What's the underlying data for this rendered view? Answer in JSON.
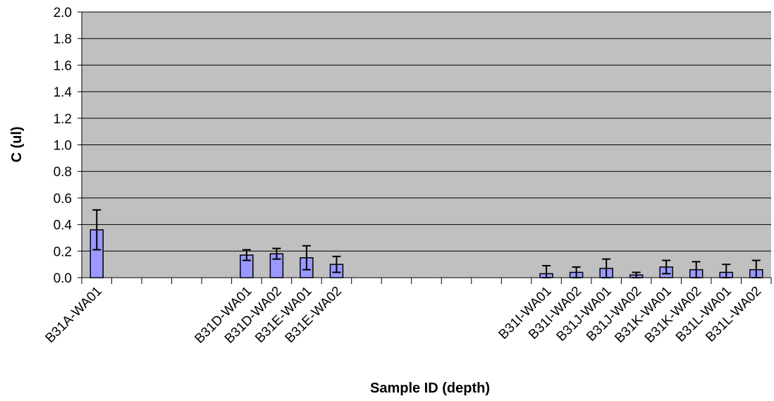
{
  "chart_data": {
    "type": "bar",
    "xlabel": "Sample ID (depth)",
    "ylabel": "C (ul)",
    "ylim": [
      0,
      2.0
    ],
    "ytick_step": 0.2,
    "ytick_labels": [
      "0.0",
      "0.2",
      "0.4",
      "0.6",
      "0.8",
      "1.0",
      "1.2",
      "1.4",
      "1.6",
      "1.8",
      "2.0"
    ],
    "grid": true,
    "categories": [
      "B31A-WA01",
      "",
      "",
      "",
      "",
      "B31D-WA01",
      "B31D-WA02",
      "B31E-WA01",
      "B31E-WA02",
      "",
      "",
      "",
      "",
      "",
      "",
      "B31I-WA01",
      "B31I-WA02",
      "B31J-WA01",
      "B31J-WA02",
      "B31K-WA01",
      "B31K-WA02",
      "B31L-WA01",
      "B31L-WA02"
    ],
    "values": [
      0.36,
      null,
      null,
      null,
      null,
      0.17,
      0.18,
      0.15,
      0.1,
      null,
      null,
      null,
      null,
      null,
      null,
      0.03,
      0.04,
      0.07,
      0.02,
      0.08,
      0.06,
      0.04,
      0.06
    ],
    "error": [
      0.15,
      null,
      null,
      null,
      null,
      0.04,
      0.04,
      0.09,
      0.06,
      null,
      null,
      null,
      null,
      null,
      null,
      0.06,
      0.04,
      0.07,
      0.02,
      0.05,
      0.06,
      0.06,
      0.07
    ],
    "colors": {
      "plot_bg": "#c0c0c0",
      "bar_fill": "#9999ff",
      "bar_stroke": "#000000",
      "grid": "#000000"
    }
  }
}
